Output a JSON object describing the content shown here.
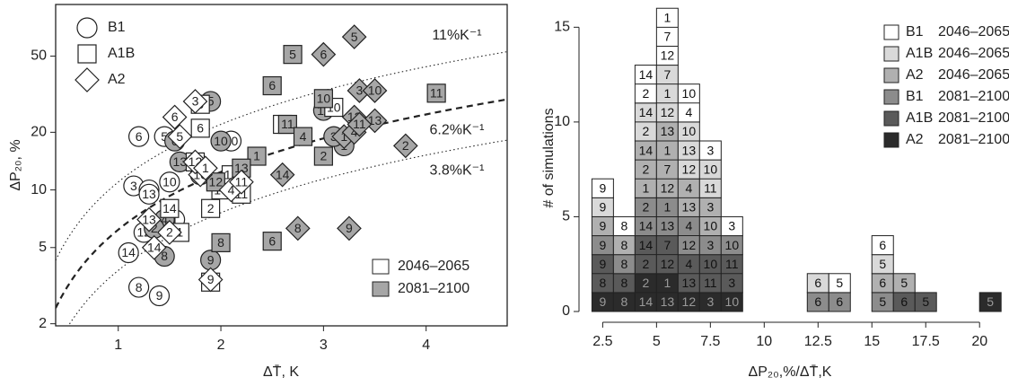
{
  "chart_data": [
    {
      "type": "scatter",
      "xlabel": "ΔT̄, K",
      "ylabel": "ΔP₂₀, %",
      "xlim": [
        0.39,
        4.79
      ],
      "ylim": [
        1.95,
        93
      ],
      "log_y": true,
      "xticks": [
        1,
        2,
        3,
        4
      ],
      "yticks": [
        2,
        5,
        10,
        20,
        50
      ],
      "scenario_legend": [
        {
          "name": "B1",
          "marker": "circle"
        },
        {
          "name": "A1B",
          "marker": "square"
        },
        {
          "name": "A2",
          "marker": "diamond"
        }
      ],
      "scenario_legend_loc": "upper left",
      "period_legend": [
        {
          "name": "2046–2065",
          "color": "#ffffff"
        },
        {
          "name": "2081–2100",
          "color": "#a6a6a6"
        }
      ],
      "period_legend_loc": "lower right",
      "reference_lines": [
        {
          "slope": 11,
          "label": "11%K⁻¹",
          "style": "dotted",
          "label_position": "above"
        },
        {
          "slope": 6.2,
          "label": "6.2%K⁻¹",
          "style": "dashed",
          "label_position": "below"
        },
        {
          "slope": 3.8,
          "label": "3.8%K⁻¹",
          "style": "dotted",
          "label_position": "below"
        }
      ],
      "series": [
        {
          "marker": "circle",
          "color": "#ffffff",
          "x": [
            1.2,
            1.15,
            1.3,
            1.1,
            1.2,
            1.4,
            1.45,
            1.5,
            1.25,
            1.55,
            2.1,
            1.3
          ],
          "y": [
            19,
            10.5,
            10,
            4.7,
            3.1,
            2.8,
            19,
            11,
            6,
            7,
            18,
            9.5
          ],
          "labels": [
            6,
            3,
            10,
            14,
            8,
            9,
            5,
            10,
            12,
            1,
            10,
            13
          ]
        },
        {
          "marker": "circle",
          "color": "#a6a6a6",
          "x": [
            1.9,
            1.55,
            1.45,
            1.9,
            3.0,
            3.2,
            1.6,
            1.45,
            1.35,
            1.8,
            3.1,
            2.0
          ],
          "y": [
            29,
            18,
            4.5,
            4.3,
            26,
            17,
            14,
            7,
            6.3,
            12,
            19,
            18
          ],
          "labels": [
            5,
            6,
            8,
            9,
            11,
            1,
            13,
            4,
            2,
            12,
            3,
            10
          ]
        },
        {
          "marker": "square",
          "color": "#ffffff",
          "x": [
            1.8,
            1.8,
            1.75,
            2.0,
            2.2,
            1.9,
            3.1,
            2.6,
            1.9,
            2.1,
            1.5,
            1.6
          ],
          "y": [
            28,
            21,
            14,
            10,
            9.5,
            8,
            27,
            22,
            3.3,
            12,
            8,
            6
          ],
          "labels": [
            5,
            6,
            3,
            10,
            11,
            2,
            10,
            8,
            9,
            13,
            14,
            1
          ]
        },
        {
          "marker": "square",
          "color": "#a6a6a6",
          "x": [
            2.7,
            2.5,
            4.1,
            3.0,
            2.65,
            2.8,
            3.0,
            2.35,
            2.5,
            2.0,
            2.2,
            1.95
          ],
          "y": [
            51,
            35,
            32,
            30,
            22,
            19,
            15,
            15,
            5.4,
            5.3,
            13,
            11
          ],
          "labels": [
            5,
            6,
            11,
            10,
            11,
            4,
            2,
            1,
            6,
            8,
            13,
            12
          ]
        },
        {
          "marker": "diamond",
          "color": "#ffffff",
          "x": [
            1.55,
            1.75,
            1.6,
            1.8,
            1.35,
            1.9,
            1.75,
            1.5,
            2.1,
            1.85,
            2.2,
            1.3
          ],
          "y": [
            24,
            29,
            19,
            12,
            5,
            3.4,
            14,
            6,
            10,
            13,
            11,
            7
          ],
          "labels": [
            6,
            3,
            5,
            10,
            14,
            9,
            12,
            2,
            4,
            1,
            11,
            13
          ]
        },
        {
          "marker": "diamond",
          "color": "#a6a6a6",
          "x": [
            3.3,
            3.0,
            3.35,
            3.5,
            3.3,
            3.5,
            3.8,
            3.2,
            2.6,
            2.75,
            3.25,
            3.3,
            3.35
          ],
          "y": [
            63,
            51,
            33,
            33,
            24,
            23,
            17,
            19,
            12,
            6.3,
            6.3,
            20,
            22
          ],
          "labels": [
            5,
            6,
            3,
            10,
            12,
            13,
            2,
            1,
            14,
            8,
            9,
            4,
            11
          ]
        }
      ]
    },
    {
      "type": "histogram",
      "xlabel": "ΔP₂₀,%/ΔT̄,K",
      "ylabel": "# of simulations",
      "bins": [
        2,
        3,
        4,
        5,
        6,
        7,
        8,
        9,
        10,
        11,
        12,
        13,
        14,
        15,
        16,
        17,
        18,
        19,
        20,
        21
      ],
      "xlim": [
        1.4,
        21.2
      ],
      "ylim": [
        0,
        16.2
      ],
      "xticks": [
        2.5,
        5,
        7.5,
        10,
        12.5,
        15,
        17.5,
        20
      ],
      "yticks": [
        0,
        5,
        10,
        15
      ],
      "legend": "upper right",
      "series": [
        {
          "scenario": "B1",
          "period": "2046–2065",
          "color": "#ffffff",
          "values": [
            1,
            1,
            2,
            3,
            2,
            1,
            1,
            0,
            0,
            0,
            0,
            1,
            0,
            1,
            0,
            0,
            0,
            0,
            0
          ],
          "labels": [
            [
              9
            ],
            [
              8
            ],
            [
              2,
              14
            ],
            [
              12,
              7,
              1
            ],
            [
              4,
              10
            ],
            [
              3
            ],
            [
              3
            ],
            [],
            [],
            [],
            [],
            [
              5
            ],
            [],
            [
              6
            ],
            [],
            [],
            [],
            [],
            []
          ]
        },
        {
          "scenario": "A1B",
          "period": "2046–2065",
          "color": "#d9d9d9",
          "values": [
            1,
            0,
            2,
            3,
            3,
            2,
            0,
            0,
            0,
            0,
            1,
            0,
            0,
            1,
            0,
            0,
            0,
            0,
            0
          ],
          "labels": [
            [
              9
            ],
            [],
            [
              2,
              14
            ],
            [
              12,
              1,
              7
            ],
            [
              12,
              13,
              10
            ],
            [
              11,
              10
            ],
            [],
            [],
            [],
            [],
            [
              6
            ],
            [],
            [],
            [
              5
            ],
            [],
            [],
            [],
            [],
            []
          ]
        },
        {
          "scenario": "A2",
          "period": "2046–2065",
          "color": "#b0b0b0",
          "values": [
            1,
            1,
            3,
            4,
            2,
            2,
            0,
            0,
            0,
            0,
            0,
            0,
            0,
            1,
            1,
            0,
            0,
            0,
            0
          ],
          "labels": [
            [
              9
            ],
            [
              8
            ],
            [
              1,
              2,
              14
            ],
            [
              12,
              7,
              1,
              13
            ],
            [
              13,
              4
            ],
            [
              10,
              3
            ],
            [],
            [],
            [],
            [],
            [],
            [],
            [],
            [
              6
            ],
            [
              5
            ],
            [],
            [],
            [],
            []
          ]
        },
        {
          "scenario": "B1",
          "period": "2081–2100",
          "color": "#8c8c8c",
          "values": [
            1,
            1,
            2,
            2,
            2,
            1,
            1,
            0,
            0,
            0,
            1,
            1,
            0,
            1,
            0,
            0,
            0,
            0,
            0
          ],
          "labels": [
            [
              9
            ],
            [
              8
            ],
            [
              14,
              2
            ],
            [
              13,
              1
            ],
            [
              12,
              4
            ],
            [
              3
            ],
            [
              10
            ],
            [],
            [],
            [],
            [
              6
            ],
            [
              6
            ],
            [],
            [
              5
            ],
            [],
            [],
            [],
            [],
            []
          ]
        },
        {
          "scenario": "A1B",
          "period": "2081–2100",
          "color": "#5a5a5a",
          "values": [
            2,
            1,
            2,
            2,
            2,
            2,
            2,
            0,
            0,
            0,
            0,
            0,
            0,
            0,
            1,
            1,
            0,
            0,
            0
          ],
          "labels": [
            [
              8,
              9
            ],
            [
              8
            ],
            [
              2,
              14
            ],
            [
              12,
              7
            ],
            [
              13,
              4
            ],
            [
              11,
              10
            ],
            [
              3,
              11
            ],
            [],
            [],
            [],
            [],
            [],
            [],
            [],
            [
              6
            ],
            [
              5
            ],
            [],
            [],
            []
          ]
        },
        {
          "scenario": "A2",
          "period": "2081–2100",
          "color": "#2b2b2b",
          "values": [
            1,
            1,
            2,
            2,
            1,
            1,
            1,
            0,
            0,
            0,
            0,
            0,
            0,
            0,
            0,
            0,
            0,
            0,
            1
          ],
          "labels": [
            [
              9
            ],
            [
              8
            ],
            [
              14,
              2
            ],
            [
              13,
              1
            ],
            [
              12
            ],
            [
              3
            ],
            [
              10
            ],
            [],
            [],
            [],
            [],
            [],
            [],
            [],
            [],
            [],
            [],
            [],
            [
              5
            ]
          ]
        }
      ]
    }
  ]
}
